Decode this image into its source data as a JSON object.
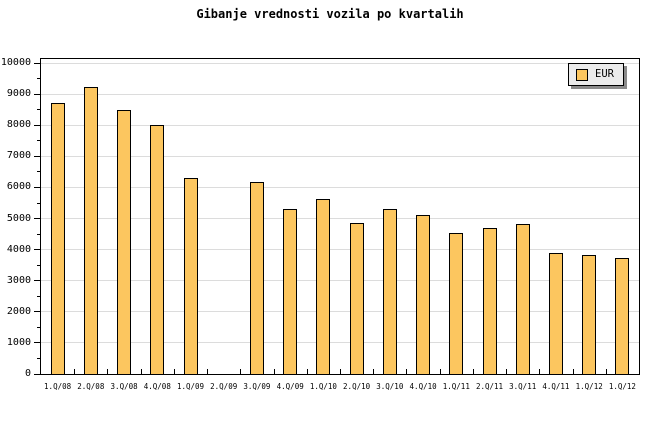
{
  "title": "Gibanje vrednosti vozila po kvartalih",
  "legend": {
    "label": "EUR"
  },
  "colors": {
    "background": "#FFFFFF",
    "bar_fill": "#FCC65F",
    "bar_border": "#000000",
    "grid": "#DCDCDC",
    "axis": "#000000",
    "legend_bg": "#EBEBEB",
    "legend_shadow": "#8A8A8A"
  },
  "chart_data": {
    "type": "bar",
    "title": "Gibanje vrednosti vozila po kvartalih",
    "categories": [
      "1.Q/08",
      "2.Q/08",
      "3.Q/08",
      "4.Q/08",
      "1.Q/09",
      "2.Q/09",
      "3.Q/09",
      "4.Q/09",
      "1.Q/10",
      "2.Q/10",
      "3.Q/10",
      "4.Q/10",
      "1.Q/11",
      "2.Q/11",
      "3.Q/11",
      "4.Q/11",
      "1.Q/12",
      "1.Q/12"
    ],
    "series": [
      {
        "name": "EUR",
        "values": [
          8700,
          9230,
          8500,
          8000,
          6290,
          null,
          6160,
          5300,
          5620,
          4870,
          5320,
          5100,
          4550,
          4700,
          4810,
          3880,
          3830,
          3740
        ]
      }
    ],
    "xlabel": "",
    "ylabel": "",
    "ylim": [
      0,
      10000
    ],
    "ytick_step": 1000,
    "ytick_minor_step": 500,
    "ytick_labels": [
      "0",
      "1000",
      "2000",
      "3000",
      "4000",
      "5000",
      "6000",
      "7000",
      "8000",
      "9000",
      "10000"
    ],
    "grid": "horizontal-major",
    "legend_position": "top-right",
    "legend_entries": [
      "EUR"
    ],
    "note": "no bar rendered for 2.Q/09; last category label 1.Q/12 appears twice"
  }
}
